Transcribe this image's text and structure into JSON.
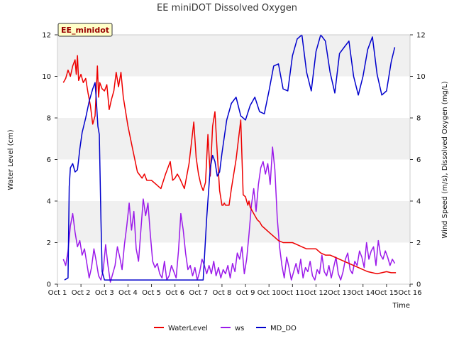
{
  "chart_data": {
    "type": "line",
    "title": "EE miniDOT Dissolved Oxygen",
    "xlabel": "Time",
    "ylabel_left": "Water Level (cm)",
    "ylabel_right": "Wind Speed (m/s), Dissolved Oxygen (mg/L)",
    "badge": "EE_minidot",
    "x_ticks": [
      "Oct 1",
      "Oct 2",
      "Oct 3",
      "Oct 4",
      "Oct 5",
      "Oct 6",
      "Oct 7",
      "Oct 8",
      "Oct 9",
      "Oct 10",
      "Oct 11",
      "Oct 12",
      "Oct 13",
      "Oct 14",
      "Oct 15",
      "Oct 16"
    ],
    "xlim": [
      1,
      16
    ],
    "ylim_left": [
      0,
      12
    ],
    "ylim_right": [
      0,
      12
    ],
    "y_ticks": [
      "0",
      "2",
      "4",
      "6",
      "8",
      "10",
      "12"
    ],
    "grid": "horizontal banded",
    "legend_position": "bottom",
    "series": [
      {
        "name": "WaterLevel",
        "color": "#ee0000",
        "axis": "left",
        "x": [
          1.25,
          1.35,
          1.45,
          1.55,
          1.65,
          1.75,
          1.8,
          1.85,
          1.9,
          2.0,
          2.1,
          2.2,
          2.3,
          2.4,
          2.5,
          2.6,
          2.7,
          2.75,
          2.8,
          2.9,
          3.0,
          3.1,
          3.2,
          3.3,
          3.4,
          3.5,
          3.6,
          3.7,
          3.8,
          3.9,
          4.0,
          4.2,
          4.4,
          4.6,
          4.7,
          4.8,
          5.0,
          5.2,
          5.4,
          5.6,
          5.8,
          5.9,
          6.0,
          6.1,
          6.2,
          6.4,
          6.6,
          6.8,
          6.9,
          7.0,
          7.1,
          7.2,
          7.3,
          7.4,
          7.5,
          7.6,
          7.7,
          7.8,
          7.9,
          8.0,
          8.05,
          8.1,
          8.15,
          8.2,
          8.3,
          8.4,
          8.6,
          8.8,
          8.9,
          9.0,
          9.05,
          9.1,
          9.15,
          9.2,
          9.3,
          9.4,
          9.5,
          9.6,
          9.7,
          9.8,
          10.0,
          10.2,
          10.4,
          10.6,
          10.8,
          11.0,
          11.2,
          11.4,
          11.6,
          11.8,
          12.0,
          12.2,
          12.4,
          12.6,
          12.8,
          13.0,
          13.2,
          13.4,
          13.6,
          13.8,
          14.0,
          14.2,
          14.4,
          14.6,
          14.8,
          15.0,
          15.2,
          15.4
        ],
        "values": [
          9.7,
          9.9,
          10.3,
          10.0,
          10.5,
          10.8,
          10.1,
          11.0,
          9.8,
          10.1,
          9.7,
          9.9,
          9.2,
          8.6,
          7.7,
          8.1,
          10.5,
          9.0,
          9.7,
          9.4,
          9.3,
          9.6,
          8.4,
          8.9,
          9.3,
          10.2,
          9.5,
          10.2,
          9.0,
          8.3,
          7.6,
          6.5,
          5.4,
          5.1,
          5.3,
          5.0,
          5.0,
          4.8,
          4.6,
          5.3,
          5.9,
          5.0,
          5.1,
          5.3,
          5.1,
          4.6,
          5.8,
          7.8,
          6.1,
          5.3,
          4.8,
          4.5,
          4.9,
          7.2,
          5.2,
          7.6,
          8.3,
          6.3,
          4.5,
          3.8,
          3.8,
          3.9,
          3.8,
          3.8,
          3.8,
          4.6,
          6.0,
          7.9,
          4.3,
          4.2,
          4.0,
          3.8,
          4.0,
          3.7,
          3.5,
          3.3,
          3.1,
          3.0,
          2.8,
          2.7,
          2.5,
          2.3,
          2.1,
          2.0,
          2.0,
          2.0,
          1.9,
          1.8,
          1.7,
          1.7,
          1.7,
          1.5,
          1.4,
          1.4,
          1.3,
          1.2,
          1.1,
          1.0,
          0.9,
          0.8,
          0.7,
          0.6,
          0.55,
          0.5,
          0.55,
          0.6,
          0.55,
          0.55
        ]
      },
      {
        "name": "ws",
        "color": "#9b1aea",
        "axis": "right",
        "x": [
          1.25,
          1.35,
          1.45,
          1.55,
          1.65,
          1.75,
          1.85,
          1.95,
          2.05,
          2.15,
          2.25,
          2.35,
          2.45,
          2.55,
          2.65,
          2.75,
          2.85,
          2.95,
          3.05,
          3.15,
          3.25,
          3.35,
          3.45,
          3.55,
          3.65,
          3.75,
          3.85,
          3.95,
          4.05,
          4.15,
          4.25,
          4.35,
          4.45,
          4.55,
          4.65,
          4.75,
          4.85,
          4.95,
          5.05,
          5.15,
          5.25,
          5.35,
          5.45,
          5.55,
          5.65,
          5.75,
          5.85,
          5.95,
          6.05,
          6.15,
          6.25,
          6.35,
          6.45,
          6.55,
          6.65,
          6.75,
          6.85,
          6.95,
          7.05,
          7.15,
          7.25,
          7.35,
          7.45,
          7.55,
          7.65,
          7.75,
          7.85,
          7.95,
          8.05,
          8.15,
          8.25,
          8.35,
          8.45,
          8.55,
          8.65,
          8.75,
          8.85,
          8.95,
          9.05,
          9.15,
          9.25,
          9.35,
          9.45,
          9.55,
          9.65,
          9.75,
          9.85,
          9.95,
          10.05,
          10.15,
          10.25,
          10.35,
          10.45,
          10.55,
          10.65,
          10.75,
          10.85,
          10.95,
          11.05,
          11.15,
          11.25,
          11.35,
          11.45,
          11.55,
          11.65,
          11.75,
          11.85,
          11.95,
          12.05,
          12.15,
          12.25,
          12.35,
          12.45,
          12.55,
          12.65,
          12.75,
          12.85,
          12.95,
          13.05,
          13.15,
          13.25,
          13.35,
          13.45,
          13.55,
          13.65,
          13.75,
          13.85,
          13.95,
          14.05,
          14.15,
          14.25,
          14.35,
          14.45,
          14.55,
          14.65,
          14.75,
          14.85,
          14.95,
          15.05,
          15.15,
          15.25,
          15.35
        ],
        "values": [
          1.2,
          0.9,
          1.6,
          2.8,
          3.4,
          2.5,
          1.8,
          2.1,
          1.4,
          1.7,
          1.0,
          0.3,
          0.8,
          1.7,
          1.1,
          0.4,
          0.2,
          0.7,
          1.9,
          0.9,
          0.1,
          0.5,
          0.9,
          1.8,
          1.3,
          0.7,
          1.9,
          2.8,
          3.9,
          2.6,
          3.5,
          1.7,
          1.1,
          2.6,
          4.1,
          3.3,
          3.9,
          2.4,
          1.1,
          0.8,
          1.0,
          0.5,
          0.3,
          1.1,
          0.2,
          0.4,
          0.9,
          0.6,
          0.3,
          1.6,
          3.4,
          2.6,
          1.5,
          0.7,
          0.9,
          0.4,
          0.8,
          0.2,
          0.6,
          1.2,
          0.9,
          0.5,
          0.9,
          0.5,
          1.1,
          0.4,
          0.8,
          0.3,
          0.7,
          0.5,
          0.9,
          0.3,
          1.0,
          0.6,
          1.5,
          1.2,
          1.8,
          0.5,
          1.2,
          2.4,
          3.8,
          4.6,
          3.5,
          4.8,
          5.6,
          5.9,
          5.3,
          5.8,
          4.8,
          6.6,
          5.5,
          3.2,
          1.8,
          0.9,
          0.3,
          1.3,
          0.8,
          0.2,
          0.6,
          1.0,
          0.5,
          1.2,
          0.3,
          0.8,
          0.6,
          1.1,
          0.4,
          0.2,
          0.7,
          0.5,
          1.4,
          0.6,
          0.4,
          0.9,
          0.3,
          0.8,
          1.3,
          0.5,
          0.2,
          0.6,
          1.2,
          1.5,
          0.7,
          0.5,
          1.1,
          0.9,
          1.6,
          1.3,
          0.8,
          2.0,
          1.2,
          1.6,
          1.8,
          0.9,
          2.1,
          1.4,
          1.2,
          1.6,
          1.3,
          0.9,
          1.2,
          1.0
        ]
      },
      {
        "name": "MD_DO",
        "color": "#0000cc",
        "axis": "right",
        "x": [
          1.3,
          1.45,
          1.5,
          1.55,
          1.65,
          1.75,
          1.85,
          1.95,
          2.05,
          2.2,
          2.35,
          2.5,
          2.6,
          2.65,
          2.72,
          2.78,
          2.85,
          2.9,
          3.0,
          3.2,
          3.4,
          3.6,
          3.8,
          4.0,
          4.4,
          4.8,
          5.2,
          5.6,
          6.0,
          6.4,
          6.8,
          7.0,
          7.2,
          7.35,
          7.5,
          7.6,
          7.7,
          7.8,
          7.9,
          8.0,
          8.2,
          8.4,
          8.6,
          8.8,
          9.0,
          9.2,
          9.4,
          9.6,
          9.8,
          10.0,
          10.2,
          10.4,
          10.6,
          10.8,
          11.0,
          11.2,
          11.4,
          11.6,
          11.8,
          12.0,
          12.2,
          12.4,
          12.6,
          12.8,
          13.0,
          13.2,
          13.4,
          13.6,
          13.8,
          14.0,
          14.2,
          14.4,
          14.6,
          14.8,
          15.0,
          15.2,
          15.35
        ],
        "values": [
          0.2,
          0.3,
          4.7,
          5.6,
          5.8,
          5.4,
          5.5,
          6.5,
          7.3,
          8.0,
          8.8,
          9.4,
          9.7,
          8.9,
          7.6,
          7.2,
          3.1,
          0.6,
          0.2,
          0.2,
          0.2,
          0.2,
          0.2,
          0.2,
          0.2,
          0.2,
          0.2,
          0.2,
          0.2,
          0.2,
          0.2,
          0.2,
          0.2,
          3.2,
          5.6,
          6.2,
          5.9,
          5.2,
          5.4,
          6.3,
          7.9,
          8.7,
          9.0,
          8.1,
          7.9,
          8.6,
          9.0,
          8.3,
          8.2,
          9.3,
          10.5,
          10.6,
          9.4,
          9.3,
          11.0,
          11.8,
          12.0,
          10.2,
          9.3,
          11.2,
          12.0,
          11.7,
          10.2,
          9.2,
          11.1,
          11.4,
          11.7,
          10.0,
          9.1,
          10.0,
          11.3,
          11.9,
          10.1,
          9.1,
          9.3,
          10.7,
          11.4
        ]
      }
    ]
  }
}
